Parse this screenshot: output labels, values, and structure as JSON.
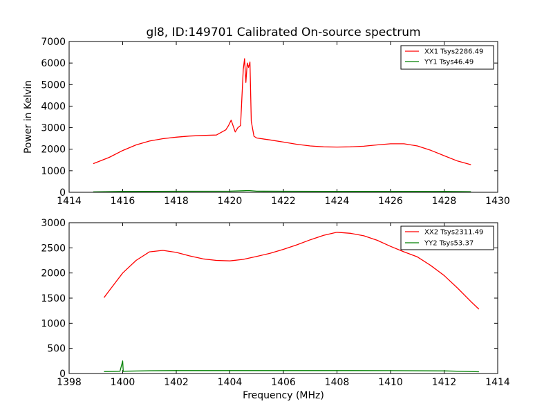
{
  "chart_data": [
    {
      "type": "line",
      "title": "gl8, ID:149701 Calibrated On-source spectrum",
      "xlabel": "",
      "ylabel": "Power in Kelvin",
      "xlim": [
        1414,
        1430
      ],
      "ylim": [
        0,
        7000
      ],
      "xticks": [
        "1414",
        "1416",
        "1418",
        "1420",
        "1422",
        "1424",
        "1426",
        "1428",
        "1430"
      ],
      "yticks": [
        "0",
        "1000",
        "2000",
        "3000",
        "4000",
        "5000",
        "6000",
        "7000"
      ],
      "legend_position": "top-right",
      "series": [
        {
          "name": "XX1 Tsys2286.49",
          "color": "#ff0000",
          "x": [
            1414.9,
            1415.5,
            1416.0,
            1416.5,
            1417.0,
            1417.5,
            1418.0,
            1418.5,
            1419.0,
            1419.5,
            1419.85,
            1419.95,
            1420.05,
            1420.2,
            1420.3,
            1420.4,
            1420.5,
            1420.55,
            1420.6,
            1420.65,
            1420.7,
            1420.75,
            1420.8,
            1420.9,
            1421.0,
            1421.5,
            1422.0,
            1422.5,
            1423.0,
            1423.5,
            1424.0,
            1424.5,
            1425.0,
            1425.5,
            1426.0,
            1426.5,
            1427.0,
            1427.5,
            1428.0,
            1428.5,
            1429.0
          ],
          "y": [
            1330,
            1620,
            1940,
            2200,
            2380,
            2490,
            2560,
            2610,
            2640,
            2660,
            2900,
            3100,
            3350,
            2800,
            3000,
            3100,
            5700,
            6200,
            5100,
            6000,
            5800,
            6050,
            3300,
            2600,
            2520,
            2430,
            2330,
            2230,
            2150,
            2110,
            2100,
            2110,
            2140,
            2200,
            2250,
            2250,
            2150,
            1950,
            1700,
            1450,
            1280
          ]
        },
        {
          "name": "YY1 Tsys46.49",
          "color": "#008000",
          "x": [
            1414.9,
            1416.0,
            1418.0,
            1420.0,
            1420.5,
            1420.7,
            1421.0,
            1422.0,
            1424.0,
            1426.0,
            1428.0,
            1429.0
          ],
          "y": [
            20,
            40,
            48,
            52,
            70,
            80,
            50,
            48,
            46,
            44,
            38,
            28
          ]
        }
      ]
    },
    {
      "type": "line",
      "title": "",
      "xlabel": "Frequency (MHz)",
      "ylabel": "",
      "xlim": [
        1398,
        1414
      ],
      "ylim": [
        0,
        3000
      ],
      "xticks": [
        "1398",
        "1400",
        "1402",
        "1404",
        "1406",
        "1408",
        "1410",
        "1412",
        "1414"
      ],
      "yticks": [
        "0",
        "500",
        "1000",
        "1500",
        "2000",
        "2500",
        "3000"
      ],
      "legend_position": "top-right",
      "series": [
        {
          "name": "XX2 Tsys2311.49",
          "color": "#ff0000",
          "x": [
            1399.3,
            1399.6,
            1400.0,
            1400.5,
            1401.0,
            1401.5,
            1402.0,
            1402.5,
            1403.0,
            1403.5,
            1404.0,
            1404.5,
            1405.0,
            1405.5,
            1406.0,
            1406.5,
            1407.0,
            1407.5,
            1408.0,
            1408.5,
            1409.0,
            1409.5,
            1410.0,
            1410.5,
            1411.0,
            1411.5,
            1412.0,
            1412.5,
            1413.0,
            1413.3
          ],
          "y": [
            1510,
            1720,
            2000,
            2250,
            2420,
            2450,
            2410,
            2340,
            2280,
            2250,
            2240,
            2270,
            2330,
            2390,
            2470,
            2560,
            2660,
            2750,
            2810,
            2790,
            2740,
            2650,
            2530,
            2420,
            2320,
            2150,
            1950,
            1700,
            1430,
            1280
          ]
        },
        {
          "name": "YY2 Tsys53.37",
          "color": "#008000",
          "x": [
            1399.3,
            1399.9,
            1400.0,
            1400.02,
            1400.05,
            1401.0,
            1402.0,
            1404.0,
            1406.0,
            1408.0,
            1410.0,
            1412.0,
            1413.3
          ],
          "y": [
            38,
            45,
            250,
            40,
            45,
            55,
            58,
            58,
            58,
            58,
            57,
            52,
            35
          ]
        }
      ]
    }
  ]
}
